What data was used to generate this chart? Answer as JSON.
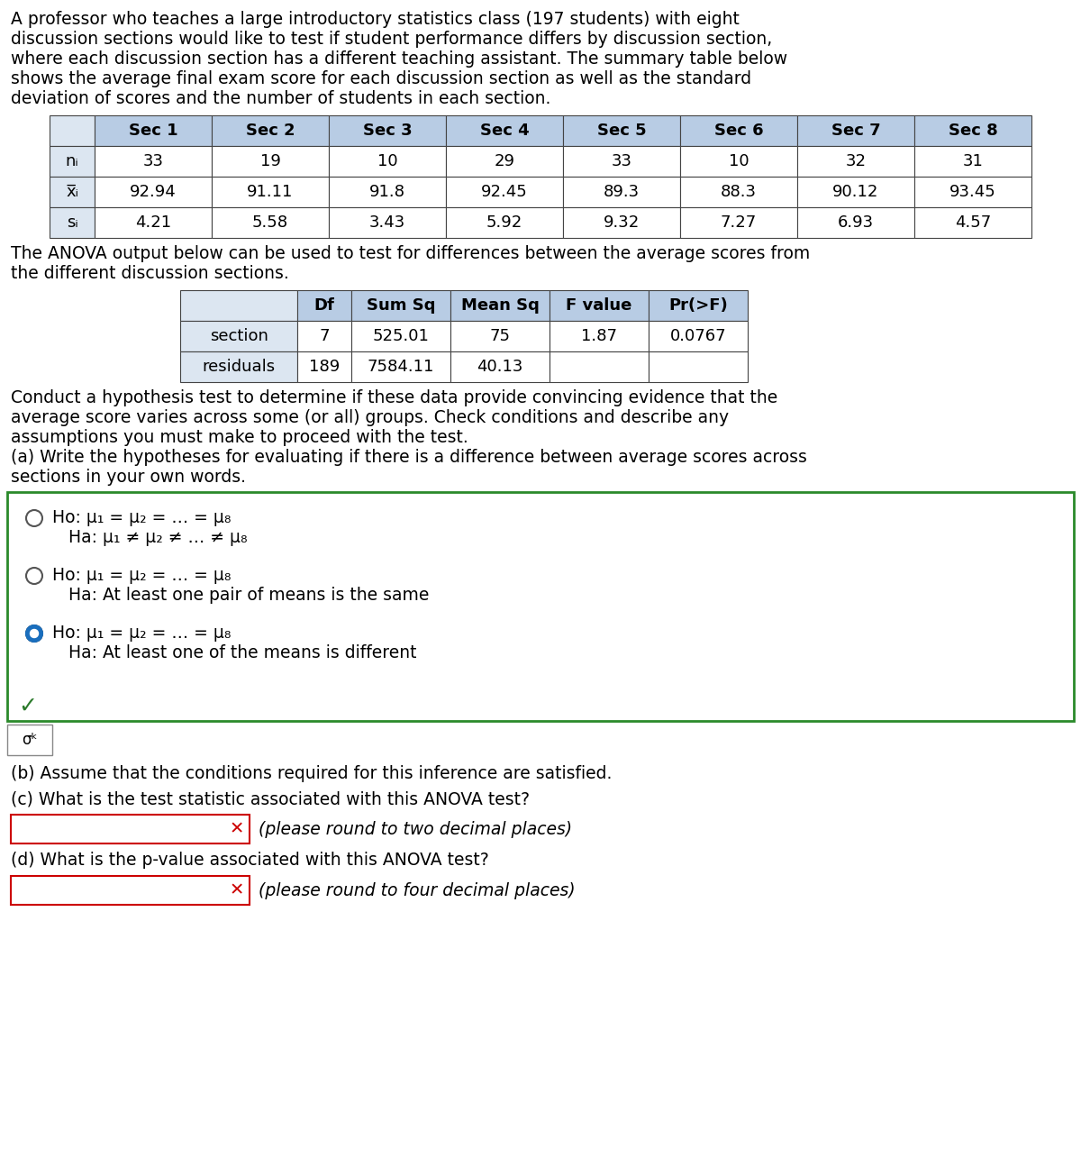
{
  "intro_text_lines": [
    "A professor who teaches a large introductory statistics class (197 students) with eight",
    "discussion sections would like to test if student performance differs by discussion section,",
    "where each discussion section has a different teaching assistant. The summary table below",
    "shows the average final exam score for each discussion section as well as the standard",
    "deviation of scores and the number of students in each section."
  ],
  "summary_headers": [
    "",
    "Sec 1",
    "Sec 2",
    "Sec 3",
    "Sec 4",
    "Sec 5",
    "Sec 6",
    "Sec 7",
    "Sec 8"
  ],
  "summary_rows": [
    [
      "nᵢ",
      "33",
      "19",
      "10",
      "29",
      "33",
      "10",
      "32",
      "31"
    ],
    [
      "x̅ᵢ",
      "92.94",
      "91.11",
      "91.8",
      "92.45",
      "89.3",
      "88.3",
      "90.12",
      "93.45"
    ],
    [
      "sᵢ",
      "4.21",
      "5.58",
      "3.43",
      "5.92",
      "9.32",
      "7.27",
      "6.93",
      "4.57"
    ]
  ],
  "anova_intro_lines": [
    "The ANOVA output below can be used to test for differences between the average scores from",
    "the different discussion sections."
  ],
  "anova_headers": [
    "",
    "Df",
    "Sum Sq",
    "Mean Sq",
    "F value",
    "Pr(>F)"
  ],
  "anova_rows": [
    [
      "section",
      "7",
      "525.01",
      "75",
      "1.87",
      "0.0767"
    ],
    [
      "residuals",
      "189",
      "7584.11",
      "40.13",
      "",
      ""
    ]
  ],
  "conduct_lines": [
    "Conduct a hypothesis test to determine if these data provide convincing evidence that the",
    "average score varies across some (or all) groups. Check conditions and describe any",
    "assumptions you must make to proceed with the test.",
    "(a) Write the hypotheses for evaluating if there is a difference between average scores across",
    "sections in your own words."
  ],
  "options": [
    {
      "selected": false,
      "ho": "Ho: μ₁ = μ₂ = … = μ₈",
      "ha": "Ha: μ₁ ≠ μ₂ ≠ … ≠ μ₈"
    },
    {
      "selected": false,
      "ho": "Ho: μ₁ = μ₂ = … = μ₈",
      "ha": "Ha: At least one pair of means is the same"
    },
    {
      "selected": true,
      "ho": "Ho: μ₁ = μ₂ = … = μ₈",
      "ha": "Ha: At least one of the means is different"
    }
  ],
  "part_b": "(b) Assume that the conditions required for this inference are satisfied.",
  "part_c": "(c) What is the test statistic associated with this ANOVA test?",
  "part_c_hint": "(please round to two decimal places)",
  "part_d": "(d) What is the p-value associated with this ANOVA test?",
  "part_d_hint": "(please round to four decimal places)",
  "header_bg": "#b8cce4",
  "row_bg": "#dce6f1",
  "white": "#ffffff",
  "box_border": "#2a8a2a",
  "check_color": "#2a7a2a",
  "input_border": "#cc0000",
  "x_color": "#cc0000",
  "selected_radio_outer": "#1a6ebd",
  "text_color": "#000000",
  "bg_color": "#ffffff"
}
